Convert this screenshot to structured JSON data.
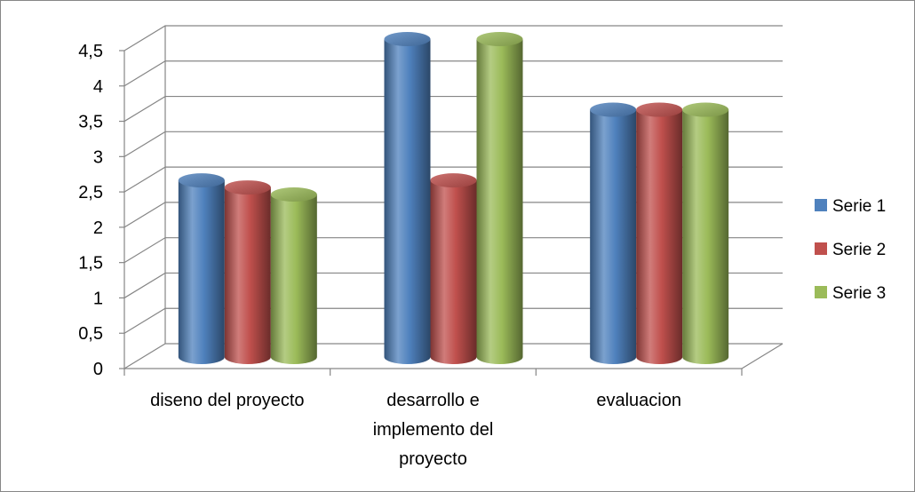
{
  "chart_data": {
    "type": "bar",
    "style": "3d-cylinder",
    "categories": [
      [
        "diseno del proyecto"
      ],
      [
        "desarrollo e",
        "implemento del",
        "proyecto"
      ],
      [
        "evaluacion"
      ]
    ],
    "series": [
      {
        "name": "Serie 1",
        "color": "#4F81BD",
        "values": [
          2.5,
          4.5,
          3.5
        ]
      },
      {
        "name": "Serie 2",
        "color": "#C0504D",
        "values": [
          2.4,
          2.5,
          3.5
        ]
      },
      {
        "name": "Serie 3",
        "color": "#9BBB59",
        "values": [
          2.3,
          4.5,
          3.5
        ]
      }
    ],
    "y_ticks": [
      "0",
      "0,5",
      "1",
      "1,5",
      "2",
      "2,5",
      "3",
      "3,5",
      "4",
      "4,5"
    ],
    "ylim": [
      0,
      4.5
    ],
    "grid": true,
    "legend_position": "right",
    "title": "",
    "xlabel": "",
    "ylabel": ""
  }
}
